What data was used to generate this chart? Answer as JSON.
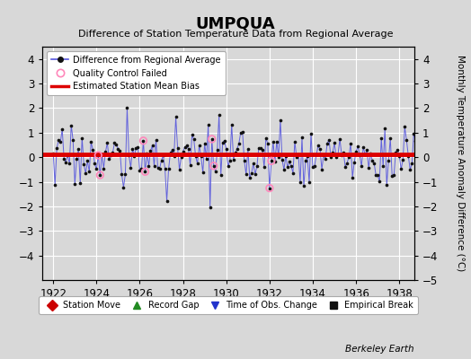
{
  "title": "UMPQUA",
  "subtitle": "Difference of Station Temperature Data from Regional Average",
  "ylabel": "Monthly Temperature Anomaly Difference (°C)",
  "xlim": [
    1921.5,
    1938.7
  ],
  "ylim": [
    -5,
    4.5
  ],
  "yticks_left": [
    -4,
    -3,
    -2,
    -1,
    0,
    1,
    2,
    3,
    4
  ],
  "yticks_right": [
    -5,
    -4,
    -3,
    -2,
    -1,
    0,
    1,
    2,
    3,
    4
  ],
  "xticks": [
    1922,
    1924,
    1926,
    1928,
    1930,
    1932,
    1934,
    1936,
    1938
  ],
  "bias_line": 0.1,
  "background_color": "#d8d8d8",
  "plot_bg_color": "#d8d8d8",
  "line_color": "#5555dd",
  "dot_color": "#111111",
  "bias_color": "#dd0000",
  "qc_color": "#ff88bb",
  "watermark": "Berkeley Earth",
  "legend_line_label": "Difference from Regional Average",
  "legend_qc_label": "Quality Control Failed",
  "legend_bias_label": "Estimated Station Mean Bias",
  "bottom_legend": [
    {
      "label": "Station Move",
      "color": "#cc0000",
      "marker": "D"
    },
    {
      "label": "Record Gap",
      "color": "#228B22",
      "marker": "^"
    },
    {
      "label": "Time of Obs. Change",
      "color": "#2233cc",
      "marker": "v"
    },
    {
      "label": "Empirical Break",
      "color": "#111111",
      "marker": "s"
    }
  ],
  "seed": 17,
  "n_months": 204,
  "start_year": 1922
}
